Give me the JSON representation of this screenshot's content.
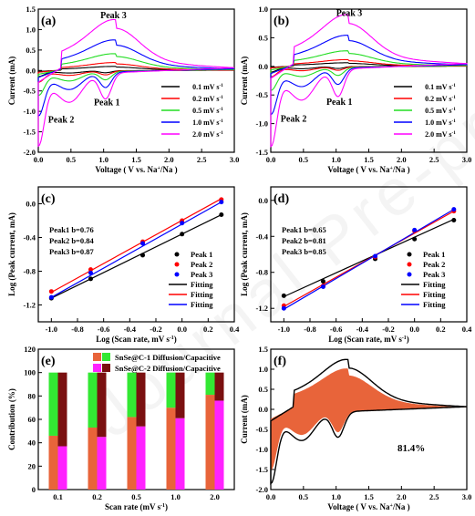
{
  "watermark": "Journal Pre-proof",
  "chart_data": [
    {
      "panel": "(a)",
      "type": "line",
      "xlabel": "Voltage ( V vs. Na+/Na )",
      "ylabel": "Current (mA)",
      "xlim": [
        0.0,
        3.0
      ],
      "ylim": [
        -2.0,
        1.5
      ],
      "xticks": [
        0.0,
        0.5,
        1.0,
        1.5,
        2.0,
        2.5,
        3.0
      ],
      "xtick_labels": [
        "0.0",
        "0.5",
        "1.0",
        "1.5",
        "2.0",
        "2.5",
        "3.0"
      ],
      "yticks": [
        -2.0,
        -1.5,
        -1.0,
        -0.5,
        0.0,
        0.5,
        1.0,
        1.5
      ],
      "ytick_labels": [
        "-2.0",
        "-1.5",
        "-1.0",
        "-0.5",
        "0.0",
        "0.5",
        "1.0",
        "1.5"
      ],
      "annotations": [
        {
          "text": "Peak 3",
          "x": 1.15,
          "y": 1.28
        },
        {
          "text": "Peak 1",
          "x": 1.05,
          "y": -0.85
        },
        {
          "text": "Peak 2",
          "x": 0.35,
          "y": -1.28
        }
      ],
      "legend": "right",
      "series": [
        {
          "name": "0.1 mV s-1",
          "color": "#000000",
          "amp": 0.08
        },
        {
          "name": "0.2 mV s-1",
          "color": "#ff0000",
          "amp": 0.155
        },
        {
          "name": "0.5 mV s-1",
          "color": "#22dd22",
          "amp": 0.33
        },
        {
          "name": "1.0 mV s-1",
          "color": "#0000ff",
          "amp": 0.6
        },
        {
          "name": "2.0 mV s-1",
          "color": "#ff00ff",
          "amp": 1.0
        }
      ],
      "anodic_peak_top": [
        1.21,
        1.03
      ],
      "cathodic_peak_bottom": [
        0.03,
        -1.85
      ]
    },
    {
      "panel": "(b)",
      "type": "line",
      "xlabel": "Voltage ( V vs. Na+/Na )",
      "ylabel": "Current (mA)",
      "xlim": [
        0.0,
        3.0
      ],
      "ylim": [
        -1.5,
        1.0
      ],
      "xticks": [
        0.0,
        0.5,
        1.0,
        1.5,
        2.0,
        2.5,
        3.0
      ],
      "xtick_labels": [
        "0.0",
        "0.5",
        "1.0",
        "1.5",
        "2.0",
        "2.5",
        "3.0"
      ],
      "yticks": [
        -1.5,
        -1.0,
        -0.5,
        0.0,
        0.5,
        1.0
      ],
      "ytick_labels": [
        "-1.5",
        "-1.0",
        "-0.5",
        "0.0",
        "0.5",
        "1.0"
      ],
      "annotations": [
        {
          "text": "Peak 3",
          "x": 1.2,
          "y": 0.88
        },
        {
          "text": "Peak 1",
          "x": 1.05,
          "y": -0.67
        },
        {
          "text": "Peak 2",
          "x": 0.35,
          "y": -0.97
        }
      ],
      "legend": "right",
      "series": [
        {
          "name": "0.1 mV s-1",
          "color": "#000000",
          "amp": 0.07
        },
        {
          "name": "0.2 mV s-1",
          "color": "#ff0000",
          "amp": 0.13
        },
        {
          "name": "0.5 mV s-1",
          "color": "#22dd22",
          "amp": 0.3
        },
        {
          "name": "1.0 mV s-1",
          "color": "#0000ff",
          "amp": 0.6
        },
        {
          "name": "2.0 mV s-1",
          "color": "#ff00ff",
          "amp": 1.0
        }
      ],
      "anodic_peak_top": [
        1.23,
        0.75
      ],
      "cathodic_peak_bottom": [
        0.02,
        -1.4
      ]
    },
    {
      "panel": "(c)",
      "type": "scatter",
      "xlabel": "Log (Scan rate, mV s-1)",
      "ylabel": "Log (Peak current, mA)",
      "xlim": [
        -1.1,
        0.4
      ],
      "ylim": [
        -1.4,
        0.2
      ],
      "xticks": [
        -1.0,
        -0.8,
        -0.6,
        -0.4,
        -0.2,
        0.0,
        0.2,
        0.4
      ],
      "xtick_labels": [
        "-1.0",
        "-0.8",
        "-0.6",
        "-0.4",
        "-0.2",
        "0.0",
        "0.2",
        "0.4"
      ],
      "yticks": [
        -1.2,
        -0.8,
        -0.4,
        0.0
      ],
      "ytick_labels": [
        "-1.2",
        "-0.8",
        "-0.4",
        "0.0"
      ],
      "x": [
        -1.0,
        -0.699,
        -0.301,
        0.0,
        0.301
      ],
      "series": [
        {
          "name": "Peak 1",
          "color": "#000000",
          "y": [
            -1.12,
            -0.89,
            -0.61,
            -0.36,
            -0.13
          ]
        },
        {
          "name": "Peak 2",
          "color": "#ff0000",
          "y": [
            -1.04,
            -0.78,
            -0.45,
            -0.2,
            0.05
          ]
        },
        {
          "name": "Peak 3",
          "color": "#0000ff",
          "y": [
            -1.11,
            -0.82,
            -0.47,
            -0.23,
            0.02
          ]
        }
      ],
      "fits": [
        {
          "name": "Fitting",
          "color": "#000000",
          "y0": -1.12,
          "y1": -0.13
        },
        {
          "name": "Fitting",
          "color": "#ff0000",
          "y0": -1.05,
          "y1": 0.06
        },
        {
          "name": "Fitting",
          "color": "#0000ff",
          "y0": -1.11,
          "y1": 0.02
        }
      ],
      "b_labels": [
        {
          "text": "Peak1 b=0.76",
          "color": "#000000"
        },
        {
          "text": "Peak2 b=0.84",
          "color": "#ff0000"
        },
        {
          "text": "Peak3 b=0.87",
          "color": "#0000ff"
        }
      ]
    },
    {
      "panel": "(d)",
      "type": "scatter",
      "xlabel": "Log (Scan rate, mV s-1)",
      "ylabel": "Log (Peak current, mA)",
      "xlim": [
        -1.1,
        0.4
      ],
      "ylim": [
        -1.35,
        0.15
      ],
      "xticks": [
        -1.0,
        -0.8,
        -0.6,
        -0.4,
        -0.2,
        0.0,
        0.2,
        0.4
      ],
      "xtick_labels": [
        "-1.0",
        "-0.8",
        "-0.6",
        "-0.4",
        "-0.2",
        "0.0",
        "0.2",
        "0.4"
      ],
      "yticks": [
        -1.2,
        -0.8,
        -0.4,
        0.0
      ],
      "ytick_labels": [
        "-1.2",
        "-0.8",
        "-0.4",
        "0.0"
      ],
      "x": [
        -1.0,
        -0.699,
        -0.301,
        0.0,
        0.301
      ],
      "series": [
        {
          "name": "Peak 1",
          "color": "#000000",
          "y": [
            -1.06,
            -0.9,
            -0.65,
            -0.43,
            -0.22
          ]
        },
        {
          "name": "Peak 2",
          "color": "#ff0000",
          "y": [
            -1.17,
            -0.95,
            -0.63,
            -0.34,
            -0.12
          ]
        },
        {
          "name": "Peak 3",
          "color": "#0000ff",
          "y": [
            -1.2,
            -0.96,
            -0.62,
            -0.33,
            -0.1
          ]
        }
      ],
      "fits": [
        {
          "name": "Fitting",
          "color": "#000000",
          "y0": -1.07,
          "y1": -0.21
        },
        {
          "name": "Fitting",
          "color": "#ff0000",
          "y0": -1.18,
          "y1": -0.12
        },
        {
          "name": "Fitting",
          "color": "#0000ff",
          "y0": -1.21,
          "y1": -0.1
        }
      ],
      "b_labels": [
        {
          "text": "Peak1 b=0.65",
          "color": "#000000"
        },
        {
          "text": "Peak2 b=0.81",
          "color": "#ff0000"
        },
        {
          "text": "Peak3 b=0.85",
          "color": "#0000ff"
        }
      ]
    },
    {
      "panel": "(e)",
      "type": "bar",
      "xlabel": "Scan rate (mV s-1)",
      "ylabel": "Contribution (%)",
      "ylim": [
        0,
        120
      ],
      "yticks": [
        0,
        20,
        40,
        60,
        80,
        100,
        120
      ],
      "ytick_labels": [
        "0",
        "20",
        "40",
        "60",
        "80",
        "100",
        "120"
      ],
      "categories": [
        "0.1",
        "0.2",
        "0.5",
        "1.0",
        "2.0"
      ],
      "series": [
        {
          "name": "SnSe@C-1 Diffusion/Capacitive",
          "colors": [
            "#e8643a",
            "#33e833"
          ],
          "capacitive": [
            46,
            53,
            62,
            70,
            81
          ]
        },
        {
          "name": "SnSe@C-2 Diffusion/Capacitive",
          "colors": [
            "#ff22ff",
            "#7a1010"
          ],
          "capacitive": [
            37,
            45,
            54,
            61,
            76
          ]
        }
      ],
      "legend": "top"
    },
    {
      "panel": "(f)",
      "type": "area",
      "xlabel": "Voltage ( V vs. Na+/Na )",
      "ylabel": "Current (mA)",
      "xlim": [
        0.0,
        3.0
      ],
      "ylim": [
        -2.0,
        1.5
      ],
      "xticks": [
        0.0,
        0.5,
        1.0,
        1.5,
        2.0,
        2.5,
        3.0
      ],
      "xtick_labels": [
        "0.0",
        "0.5",
        "1.0",
        "1.5",
        "2.0",
        "2.5",
        "3.0"
      ],
      "yticks": [
        -2.0,
        -1.5,
        -1.0,
        -0.5,
        0.0,
        0.5,
        1.0,
        1.5
      ],
      "ytick_labels": [
        "-2.0",
        "-1.5",
        "-1.0",
        "-0.5",
        "0.0",
        "0.5",
        "1.0",
        "1.5"
      ],
      "fill_color": "#e8643a",
      "annotation": "81.4%"
    }
  ]
}
